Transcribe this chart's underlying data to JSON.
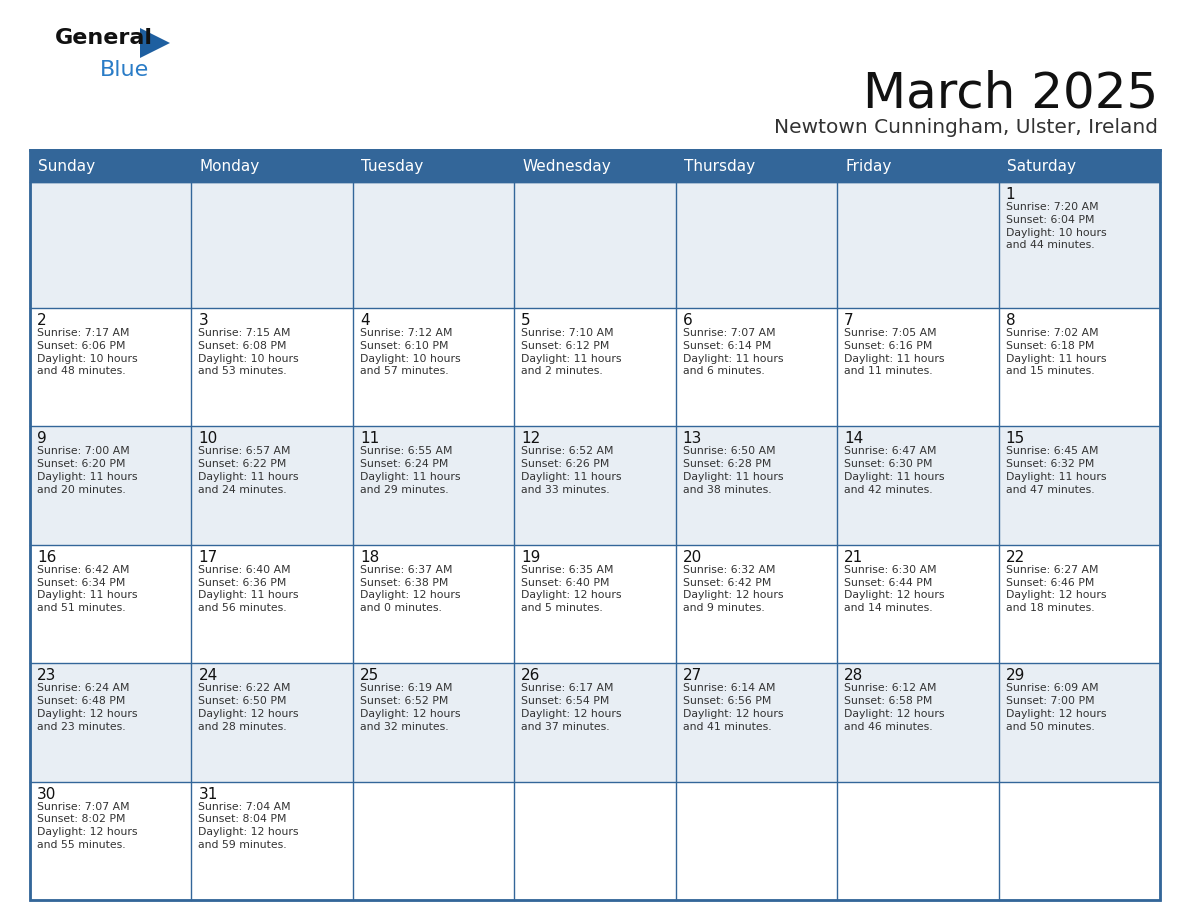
{
  "title": "March 2025",
  "subtitle": "Newtown Cunningham, Ulster, Ireland",
  "header_bg": "#336699",
  "header_text_color": "#ffffff",
  "cell_bg_light": "#e8eef4",
  "cell_bg_white": "#ffffff",
  "border_color": "#336699",
  "day_headers": [
    "Sunday",
    "Monday",
    "Tuesday",
    "Wednesday",
    "Thursday",
    "Friday",
    "Saturday"
  ],
  "title_color": "#111111",
  "subtitle_color": "#333333",
  "day_num_color": "#111111",
  "info_color": "#333333",
  "logo_general_color": "#111111",
  "logo_blue_color": "#2a7cc7",
  "weeks": [
    [
      {
        "day": null,
        "info": ""
      },
      {
        "day": null,
        "info": ""
      },
      {
        "day": null,
        "info": ""
      },
      {
        "day": null,
        "info": ""
      },
      {
        "day": null,
        "info": ""
      },
      {
        "day": null,
        "info": ""
      },
      {
        "day": 1,
        "info": "Sunrise: 7:20 AM\nSunset: 6:04 PM\nDaylight: 10 hours\nand 44 minutes."
      }
    ],
    [
      {
        "day": 2,
        "info": "Sunrise: 7:17 AM\nSunset: 6:06 PM\nDaylight: 10 hours\nand 48 minutes."
      },
      {
        "day": 3,
        "info": "Sunrise: 7:15 AM\nSunset: 6:08 PM\nDaylight: 10 hours\nand 53 minutes."
      },
      {
        "day": 4,
        "info": "Sunrise: 7:12 AM\nSunset: 6:10 PM\nDaylight: 10 hours\nand 57 minutes."
      },
      {
        "day": 5,
        "info": "Sunrise: 7:10 AM\nSunset: 6:12 PM\nDaylight: 11 hours\nand 2 minutes."
      },
      {
        "day": 6,
        "info": "Sunrise: 7:07 AM\nSunset: 6:14 PM\nDaylight: 11 hours\nand 6 minutes."
      },
      {
        "day": 7,
        "info": "Sunrise: 7:05 AM\nSunset: 6:16 PM\nDaylight: 11 hours\nand 11 minutes."
      },
      {
        "day": 8,
        "info": "Sunrise: 7:02 AM\nSunset: 6:18 PM\nDaylight: 11 hours\nand 15 minutes."
      }
    ],
    [
      {
        "day": 9,
        "info": "Sunrise: 7:00 AM\nSunset: 6:20 PM\nDaylight: 11 hours\nand 20 minutes."
      },
      {
        "day": 10,
        "info": "Sunrise: 6:57 AM\nSunset: 6:22 PM\nDaylight: 11 hours\nand 24 minutes."
      },
      {
        "day": 11,
        "info": "Sunrise: 6:55 AM\nSunset: 6:24 PM\nDaylight: 11 hours\nand 29 minutes."
      },
      {
        "day": 12,
        "info": "Sunrise: 6:52 AM\nSunset: 6:26 PM\nDaylight: 11 hours\nand 33 minutes."
      },
      {
        "day": 13,
        "info": "Sunrise: 6:50 AM\nSunset: 6:28 PM\nDaylight: 11 hours\nand 38 minutes."
      },
      {
        "day": 14,
        "info": "Sunrise: 6:47 AM\nSunset: 6:30 PM\nDaylight: 11 hours\nand 42 minutes."
      },
      {
        "day": 15,
        "info": "Sunrise: 6:45 AM\nSunset: 6:32 PM\nDaylight: 11 hours\nand 47 minutes."
      }
    ],
    [
      {
        "day": 16,
        "info": "Sunrise: 6:42 AM\nSunset: 6:34 PM\nDaylight: 11 hours\nand 51 minutes."
      },
      {
        "day": 17,
        "info": "Sunrise: 6:40 AM\nSunset: 6:36 PM\nDaylight: 11 hours\nand 56 minutes."
      },
      {
        "day": 18,
        "info": "Sunrise: 6:37 AM\nSunset: 6:38 PM\nDaylight: 12 hours\nand 0 minutes."
      },
      {
        "day": 19,
        "info": "Sunrise: 6:35 AM\nSunset: 6:40 PM\nDaylight: 12 hours\nand 5 minutes."
      },
      {
        "day": 20,
        "info": "Sunrise: 6:32 AM\nSunset: 6:42 PM\nDaylight: 12 hours\nand 9 minutes."
      },
      {
        "day": 21,
        "info": "Sunrise: 6:30 AM\nSunset: 6:44 PM\nDaylight: 12 hours\nand 14 minutes."
      },
      {
        "day": 22,
        "info": "Sunrise: 6:27 AM\nSunset: 6:46 PM\nDaylight: 12 hours\nand 18 minutes."
      }
    ],
    [
      {
        "day": 23,
        "info": "Sunrise: 6:24 AM\nSunset: 6:48 PM\nDaylight: 12 hours\nand 23 minutes."
      },
      {
        "day": 24,
        "info": "Sunrise: 6:22 AM\nSunset: 6:50 PM\nDaylight: 12 hours\nand 28 minutes."
      },
      {
        "day": 25,
        "info": "Sunrise: 6:19 AM\nSunset: 6:52 PM\nDaylight: 12 hours\nand 32 minutes."
      },
      {
        "day": 26,
        "info": "Sunrise: 6:17 AM\nSunset: 6:54 PM\nDaylight: 12 hours\nand 37 minutes."
      },
      {
        "day": 27,
        "info": "Sunrise: 6:14 AM\nSunset: 6:56 PM\nDaylight: 12 hours\nand 41 minutes."
      },
      {
        "day": 28,
        "info": "Sunrise: 6:12 AM\nSunset: 6:58 PM\nDaylight: 12 hours\nand 46 minutes."
      },
      {
        "day": 29,
        "info": "Sunrise: 6:09 AM\nSunset: 7:00 PM\nDaylight: 12 hours\nand 50 minutes."
      }
    ],
    [
      {
        "day": 30,
        "info": "Sunrise: 7:07 AM\nSunset: 8:02 PM\nDaylight: 12 hours\nand 55 minutes."
      },
      {
        "day": 31,
        "info": "Sunrise: 7:04 AM\nSunset: 8:04 PM\nDaylight: 12 hours\nand 59 minutes."
      },
      {
        "day": null,
        "info": ""
      },
      {
        "day": null,
        "info": ""
      },
      {
        "day": null,
        "info": ""
      },
      {
        "day": null,
        "info": ""
      },
      {
        "day": null,
        "info": ""
      }
    ]
  ]
}
